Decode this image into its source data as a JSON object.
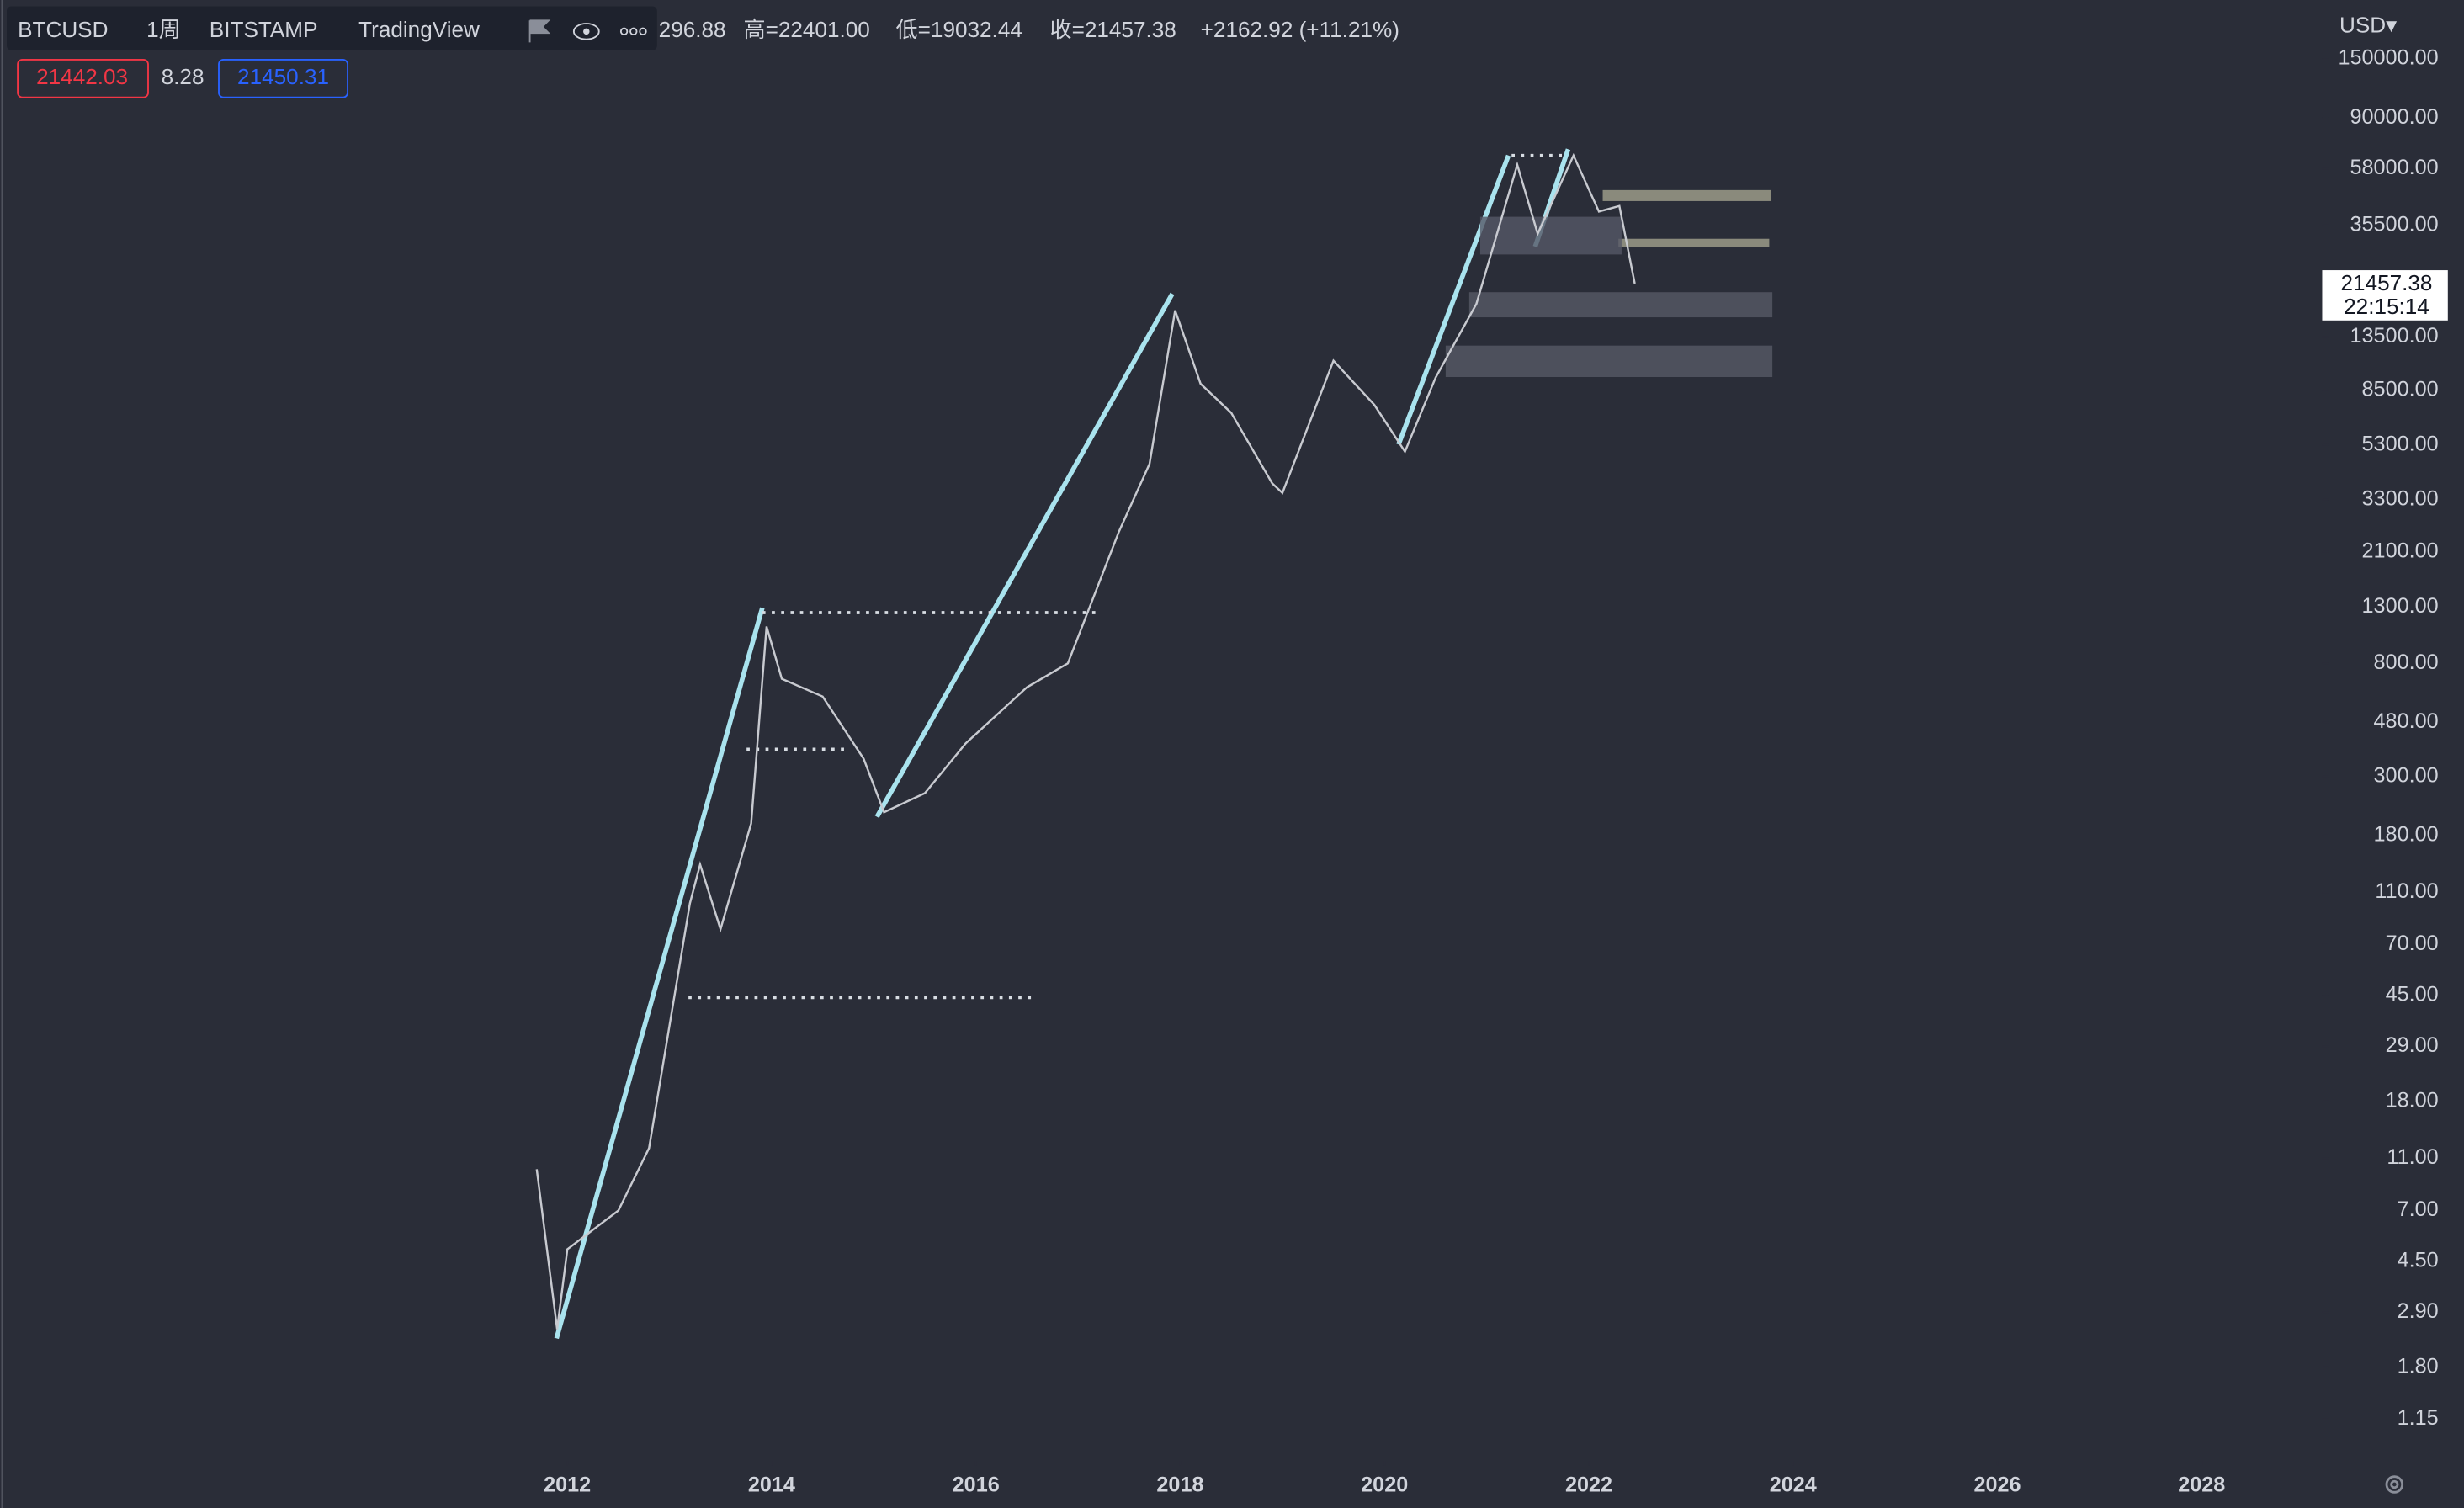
{
  "header": {
    "symbol": "BTCUSD",
    "interval": "1周",
    "exchange": "BITSTAMP",
    "source": "TradingView",
    "open_partial": "296.88",
    "high": "高=22401.00",
    "low": "低=19032.44",
    "close": "收=21457.38",
    "change": "+2162.92 (+11.21%)"
  },
  "quote": {
    "bid": "21442.03",
    "spread": "8.28",
    "ask": "21450.31"
  },
  "currency": "USD▾",
  "last_price": {
    "price": "21457.38",
    "countdown": "22:15:14"
  },
  "chart_data": {
    "type": "line",
    "log_scale": true,
    "color": "#c8cad0",
    "x": [
      2011.7,
      2011.9,
      2012.0,
      2012.5,
      2012.8,
      2013.2,
      2013.3,
      2013.5,
      2013.8,
      2013.95,
      2014.1,
      2014.5,
      2014.9,
      2015.1,
      2015.5,
      2015.9,
      2016.5,
      2016.9,
      2017.4,
      2017.7,
      2017.95,
      2018.2,
      2018.5,
      2018.9,
      2019.0,
      2019.5,
      2019.9,
      2020.2,
      2020.5,
      2020.9,
      2021.3,
      2021.5,
      2021.85,
      2022.1,
      2022.3,
      2022.45
    ],
    "values": [
      10,
      2.5,
      5,
      7,
      12,
      100,
      140,
      80,
      200,
      1100,
      700,
      600,
      350,
      220,
      260,
      400,
      650,
      800,
      2500,
      4500,
      17000,
      9000,
      7000,
      3800,
      3500,
      11000,
      7500,
      5000,
      9500,
      18000,
      60000,
      33000,
      65000,
      40000,
      42000,
      21457.38
    ],
    "xlim": [
      2006.45,
      2029.18
    ],
    "xticks": [
      2012,
      2014,
      2016,
      2018,
      2020,
      2022,
      2024,
      2026,
      2028
    ],
    "ylim": [
      0.8,
      250000
    ],
    "yticks": [
      {
        "value": 150000,
        "label": "150000.00"
      },
      {
        "value": 90000,
        "label": "90000.00"
      },
      {
        "value": 58000,
        "label": "58000.00"
      },
      {
        "value": 35500,
        "label": "35500.00"
      },
      {
        "value": 13500,
        "label": "13500.00"
      },
      {
        "value": 8500,
        "label": "8500.00"
      },
      {
        "value": 5300,
        "label": "5300.00"
      },
      {
        "value": 3300,
        "label": "3300.00"
      },
      {
        "value": 2100,
        "label": "2100.00"
      },
      {
        "value": 1300,
        "label": "1300.00"
      },
      {
        "value": 800,
        "label": "800.00"
      },
      {
        "value": 480,
        "label": "480.00"
      },
      {
        "value": 300,
        "label": "300.00"
      },
      {
        "value": 180,
        "label": "180.00"
      },
      {
        "value": 110,
        "label": "110.00"
      },
      {
        "value": 70,
        "label": "70.00"
      },
      {
        "value": 45,
        "label": "45.00"
      },
      {
        "value": 29,
        "label": "29.00"
      },
      {
        "value": 18,
        "label": "18.00"
      },
      {
        "value": 11,
        "label": "11.00"
      },
      {
        "value": 7,
        "label": "7.00"
      },
      {
        "value": 4.5,
        "label": "4.50"
      },
      {
        "value": 2.9,
        "label": "2.90"
      },
      {
        "value": 1.8,
        "label": "1.80"
      },
      {
        "value": 1.15,
        "label": "1.15"
      }
    ]
  }
}
